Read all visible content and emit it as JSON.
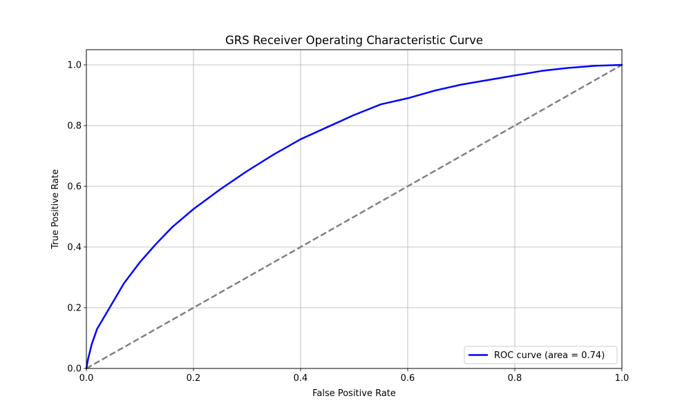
{
  "chart_data": {
    "type": "line",
    "title": "GRS Receiver Operating Characteristic Curve",
    "xlabel": "False Positive Rate",
    "ylabel": "True Positive Rate",
    "xlim": [
      0.0,
      1.0
    ],
    "ylim": [
      0.0,
      1.05
    ],
    "xticks": [
      0.0,
      0.2,
      0.4,
      0.6,
      0.8,
      1.0
    ],
    "yticks": [
      0.0,
      0.2,
      0.4,
      0.6,
      0.8,
      1.0
    ],
    "xtick_labels": [
      "0.0",
      "0.2",
      "0.4",
      "0.6",
      "0.8",
      "1.0"
    ],
    "ytick_labels": [
      "0.0",
      "0.2",
      "0.4",
      "0.6",
      "0.8",
      "1.0"
    ],
    "grid": true,
    "legend_position": "lower-right",
    "series": [
      {
        "name": "ROC curve (area = 0.74)",
        "color": "#0000ff",
        "style": "solid",
        "x": [
          0.0,
          0.003,
          0.01,
          0.02,
          0.03,
          0.05,
          0.07,
          0.1,
          0.13,
          0.16,
          0.2,
          0.25,
          0.3,
          0.35,
          0.4,
          0.45,
          0.5,
          0.55,
          0.6,
          0.65,
          0.7,
          0.75,
          0.8,
          0.85,
          0.9,
          0.95,
          1.0
        ],
        "y": [
          0.0,
          0.03,
          0.08,
          0.13,
          0.16,
          0.22,
          0.28,
          0.35,
          0.41,
          0.465,
          0.525,
          0.59,
          0.65,
          0.705,
          0.755,
          0.795,
          0.835,
          0.87,
          0.89,
          0.915,
          0.935,
          0.95,
          0.965,
          0.98,
          0.99,
          0.997,
          1.0
        ]
      },
      {
        "name": "",
        "color": "#808080",
        "style": "dashed",
        "x": [
          0.0,
          1.0
        ],
        "y": [
          0.0,
          1.0
        ]
      }
    ]
  }
}
